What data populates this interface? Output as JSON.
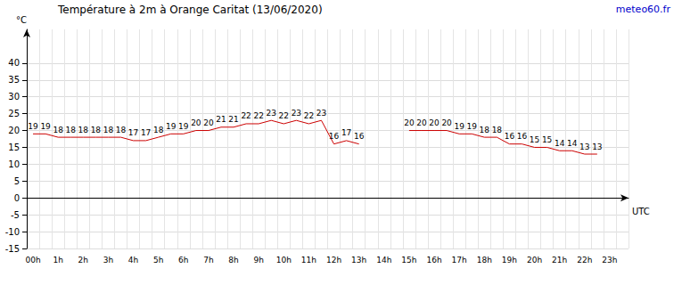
{
  "chart_data": {
    "type": "line",
    "title": "Température à 2m à Orange Caritat (13/06/2020)",
    "annotation": "meteo60.fr",
    "x_label": "UTC",
    "y_label": "°C",
    "categories": [
      "00h",
      null,
      "1h",
      null,
      "2h",
      null,
      "3h",
      null,
      "4h",
      null,
      "5h",
      null,
      "6h",
      null,
      "7h",
      null,
      "8h",
      null,
      "9h",
      null,
      "10h",
      null,
      "11h",
      null,
      "12h",
      null,
      "13h",
      null,
      "14h",
      null,
      "15h",
      null,
      "16h",
      null,
      "17h",
      null,
      "18h",
      null,
      "19h",
      null,
      "20h",
      null,
      "21h",
      null,
      "22h",
      null,
      "23h",
      null
    ],
    "values": [
      19,
      19,
      18,
      18,
      18,
      18,
      18,
      18,
      17,
      17,
      18,
      19,
      19,
      20,
      20,
      21,
      21,
      22,
      22,
      23,
      22,
      23,
      22,
      23,
      16,
      17,
      16,
      null,
      null,
      null,
      20,
      20,
      20,
      20,
      19,
      19,
      18,
      18,
      16,
      16,
      15,
      15,
      14,
      14,
      13,
      13,
      null,
      null
    ],
    "color": "#cc0000",
    "ylim": [
      -15,
      50
    ],
    "yticks": [
      -15,
      -10,
      -5,
      0,
      5,
      10,
      15,
      20,
      25,
      30,
      35,
      40
    ],
    "grid": true,
    "data_labels": true
  }
}
